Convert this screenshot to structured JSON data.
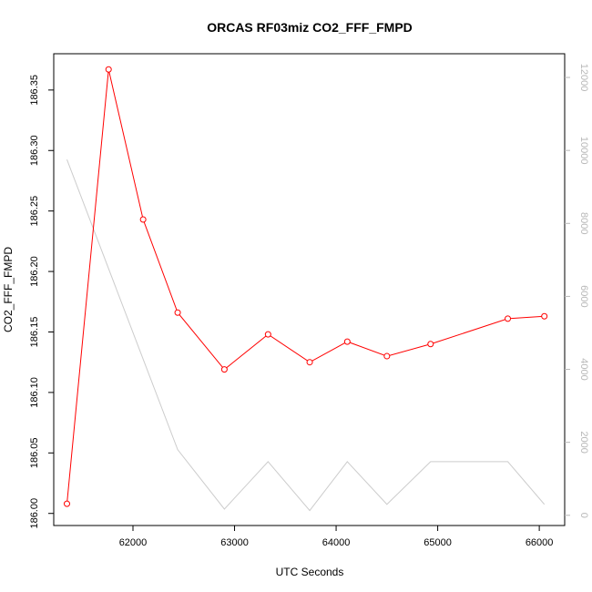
{
  "chart_data": {
    "type": "line",
    "title": "ORCAS RF03miz CO2_FFF_FMPD",
    "xlabel": "UTC Seconds",
    "ylabel": "CO2_FFF_FMPD",
    "y2label": "",
    "xlim": [
      61220,
      66250
    ],
    "ylim": [
      185.99,
      186.38
    ],
    "y2lim": [
      -280,
      12650
    ],
    "x_ticks": [
      62000,
      63000,
      64000,
      65000,
      66000
    ],
    "x_tick_labels": [
      "62000",
      "63000",
      "64000",
      "65000",
      "66000"
    ],
    "y_ticks": [
      186.0,
      186.05,
      186.1,
      186.15,
      186.2,
      186.25,
      186.3,
      186.35
    ],
    "y_tick_labels": [
      "186.00",
      "186.05",
      "186.10",
      "186.15",
      "186.20",
      "186.25",
      "186.30",
      "186.35"
    ],
    "y2_ticks": [
      0,
      2000,
      4000,
      6000,
      8000,
      10000,
      12000
    ],
    "y2_tick_labels": [
      "0",
      "2000",
      "4000",
      "6000",
      "8000",
      "10000",
      "12000"
    ],
    "grid": false,
    "series": [
      {
        "axis": "left",
        "color": "#ff0000",
        "markers": "open-circle",
        "x": [
          61350,
          61760,
          62100,
          62440,
          62900,
          63330,
          63740,
          64110,
          64500,
          64930,
          65690,
          66050
        ],
        "y": [
          186.008,
          186.367,
          186.243,
          186.166,
          186.119,
          186.148,
          186.125,
          186.142,
          186.13,
          186.14,
          186.161,
          186.163
        ]
      },
      {
        "axis": "right",
        "color": "#cccccc",
        "markers": "none",
        "x": [
          61350,
          62440,
          62900,
          63330,
          63740,
          64110,
          64500,
          64930,
          65690,
          66050
        ],
        "y": [
          9750,
          1800,
          170,
          1470,
          130,
          1470,
          300,
          1470,
          1470,
          300
        ]
      }
    ]
  }
}
